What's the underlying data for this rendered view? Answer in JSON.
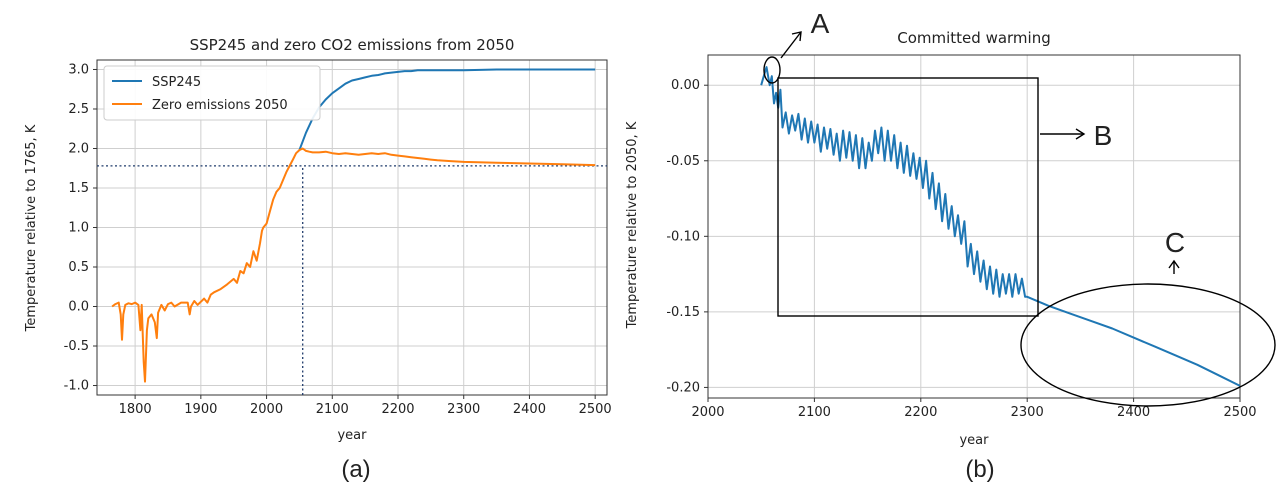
{
  "colors": {
    "ssp245": "#1f77b4",
    "zero_emissions": "#ff7f0e",
    "guide": "#1f3b6b",
    "grid": "#cfcfcf",
    "annotation": "#000000"
  },
  "panel_labels": [
    "(a)",
    "(b)"
  ],
  "annotations": {
    "a": "A",
    "b": "B",
    "c": "C"
  },
  "chart_data": [
    {
      "type": "line",
      "title": "SSP245 and zero CO2 emissions from 2050",
      "xlabel": "year",
      "ylabel": "Temperature relative to 1765, K",
      "xlim": [
        1742,
        2518
      ],
      "ylim": [
        -1.12,
        3.12
      ],
      "xticks": [
        1800,
        1900,
        2000,
        2100,
        2200,
        2300,
        2400,
        2500
      ],
      "yticks": [
        -1.0,
        -0.5,
        0.0,
        0.5,
        1.0,
        1.5,
        2.0,
        2.5,
        3.0
      ],
      "grid": true,
      "legend": "top-left",
      "reference_lines": {
        "x": 2055,
        "y": 1.78
      },
      "series": [
        {
          "name": "SSP245",
          "x": [
            2050,
            2060,
            2070,
            2080,
            2090,
            2100,
            2110,
            2120,
            2130,
            2140,
            2150,
            2160,
            2170,
            2180,
            2190,
            2200,
            2210,
            2220,
            2230,
            2250,
            2300,
            2350,
            2400,
            2450,
            2500
          ],
          "y": [
            1.98,
            2.2,
            2.38,
            2.52,
            2.62,
            2.7,
            2.76,
            2.82,
            2.86,
            2.88,
            2.9,
            2.92,
            2.93,
            2.95,
            2.96,
            2.97,
            2.98,
            2.98,
            2.99,
            2.99,
            2.99,
            3.0,
            3.0,
            3.0,
            3.0
          ]
        },
        {
          "name": "Zero emissions 2050",
          "x": [
            1765,
            1770,
            1775,
            1778,
            1780,
            1782,
            1785,
            1790,
            1795,
            1800,
            1805,
            1808,
            1810,
            1813,
            1815,
            1818,
            1820,
            1825,
            1830,
            1833,
            1835,
            1840,
            1845,
            1850,
            1855,
            1860,
            1870,
            1880,
            1883,
            1885,
            1890,
            1895,
            1900,
            1905,
            1910,
            1915,
            1920,
            1930,
            1940,
            1950,
            1955,
            1960,
            1965,
            1970,
            1975,
            1980,
            1985,
            1990,
            1993,
            1995,
            2000,
            2005,
            2010,
            2015,
            2020,
            2025,
            2030,
            2035,
            2040,
            2045,
            2050,
            2055,
            2060,
            2065,
            2070,
            2080,
            2090,
            2100,
            2110,
            2120,
            2130,
            2140,
            2150,
            2160,
            2170,
            2180,
            2190,
            2200,
            2210,
            2220,
            2230,
            2240,
            2250,
            2260,
            2280,
            2300,
            2350,
            2400,
            2450,
            2500
          ],
          "y": [
            0.0,
            0.03,
            0.05,
            -0.1,
            -0.42,
            -0.1,
            0.02,
            0.04,
            0.03,
            0.05,
            0.02,
            -0.3,
            0.02,
            -0.7,
            -0.95,
            -0.3,
            -0.15,
            -0.1,
            -0.2,
            -0.4,
            -0.08,
            0.02,
            -0.05,
            0.03,
            0.05,
            0.0,
            0.05,
            0.05,
            -0.1,
            0.0,
            0.07,
            0.02,
            0.06,
            0.1,
            0.05,
            0.15,
            0.18,
            0.22,
            0.28,
            0.35,
            0.3,
            0.45,
            0.42,
            0.55,
            0.5,
            0.7,
            0.58,
            0.8,
            0.96,
            1.0,
            1.05,
            1.2,
            1.35,
            1.45,
            1.5,
            1.6,
            1.7,
            1.78,
            1.86,
            1.94,
            1.98,
            2.0,
            1.97,
            1.96,
            1.95,
            1.95,
            1.96,
            1.94,
            1.93,
            1.94,
            1.93,
            1.92,
            1.93,
            1.94,
            1.93,
            1.94,
            1.92,
            1.91,
            1.9,
            1.89,
            1.88,
            1.87,
            1.86,
            1.85,
            1.84,
            1.83,
            1.82,
            1.81,
            1.8,
            1.79
          ]
        }
      ]
    },
    {
      "type": "line",
      "title": "Committed warming",
      "xlabel": "year",
      "ylabel": "Temperature relative to 2050, K",
      "xlim": [
        2000,
        2500
      ],
      "ylim": [
        -0.207,
        0.02
      ],
      "xticks": [
        2000,
        2100,
        2200,
        2300,
        2400,
        2500
      ],
      "yticks": [
        -0.2,
        -0.15,
        -0.1,
        -0.05,
        0.0
      ],
      "grid": true,
      "series": [
        {
          "name": "",
          "x": [
            2050,
            2052,
            2055,
            2058,
            2060,
            2062,
            2064,
            2066,
            2068,
            2070,
            2073,
            2076,
            2079,
            2082,
            2085,
            2088,
            2091,
            2094,
            2097,
            2100,
            2103,
            2106,
            2109,
            2112,
            2115,
            2118,
            2121,
            2124,
            2127,
            2130,
            2133,
            2136,
            2139,
            2142,
            2145,
            2148,
            2151,
            2154,
            2157,
            2160,
            2163,
            2166,
            2169,
            2172,
            2175,
            2178,
            2181,
            2184,
            2187,
            2190,
            2193,
            2196,
            2199,
            2202,
            2205,
            2208,
            2211,
            2214,
            2217,
            2220,
            2223,
            2226,
            2229,
            2232,
            2235,
            2238,
            2241,
            2244,
            2247,
            2250,
            2253,
            2256,
            2259,
            2262,
            2265,
            2268,
            2271,
            2274,
            2277,
            2280,
            2283,
            2286,
            2289,
            2292,
            2295,
            2298,
            2300,
            2320,
            2340,
            2360,
            2380,
            2400,
            2420,
            2440,
            2460,
            2480,
            2500
          ],
          "y": [
            0.0,
            0.005,
            0.012,
            0.0,
            0.006,
            -0.012,
            -0.005,
            -0.015,
            -0.003,
            -0.028,
            -0.018,
            -0.032,
            -0.02,
            -0.03,
            -0.019,
            -0.036,
            -0.022,
            -0.038,
            -0.024,
            -0.038,
            -0.026,
            -0.044,
            -0.028,
            -0.042,
            -0.029,
            -0.046,
            -0.032,
            -0.05,
            -0.03,
            -0.048,
            -0.031,
            -0.05,
            -0.033,
            -0.055,
            -0.035,
            -0.055,
            -0.038,
            -0.05,
            -0.03,
            -0.045,
            -0.028,
            -0.05,
            -0.03,
            -0.05,
            -0.033,
            -0.055,
            -0.038,
            -0.058,
            -0.04,
            -0.06,
            -0.045,
            -0.062,
            -0.048,
            -0.068,
            -0.05,
            -0.075,
            -0.058,
            -0.082,
            -0.065,
            -0.09,
            -0.072,
            -0.095,
            -0.08,
            -0.1,
            -0.086,
            -0.105,
            -0.09,
            -0.12,
            -0.105,
            -0.125,
            -0.11,
            -0.13,
            -0.116,
            -0.135,
            -0.12,
            -0.138,
            -0.122,
            -0.14,
            -0.125,
            -0.138,
            -0.125,
            -0.14,
            -0.125,
            -0.138,
            -0.128,
            -0.14,
            -0.14,
            -0.146,
            -0.151,
            -0.156,
            -0.161,
            -0.167,
            -0.173,
            -0.179,
            -0.185,
            -0.192,
            -0.199
          ]
        }
      ]
    }
  ]
}
